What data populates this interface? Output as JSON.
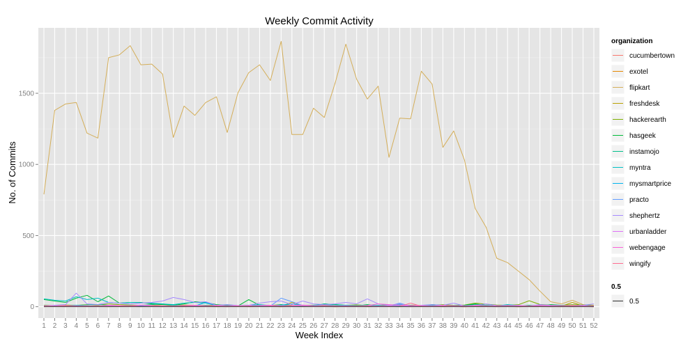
{
  "chart_data": {
    "type": "line",
    "title": "Weekly Commit Activity",
    "xlabel": "Week Index",
    "ylabel": "No. of Commits",
    "xlim": [
      1,
      52
    ],
    "ylim": [
      -80,
      1960
    ],
    "yticks": [
      0,
      500,
      1000,
      1500
    ],
    "xticks": [
      "1",
      "2",
      "3",
      "4",
      "5",
      "6",
      "7",
      "8",
      "9",
      "10",
      "11",
      "12",
      "13",
      "14",
      "15",
      "16",
      "17",
      "18",
      "19",
      "20",
      "21",
      "22",
      "23",
      "24",
      "25",
      "26",
      "27",
      "28",
      "29",
      "30",
      "31",
      "32",
      "33",
      "34",
      "35",
      "36",
      "37",
      "38",
      "39",
      "40",
      "41",
      "42",
      "43",
      "44",
      "45",
      "46",
      "47",
      "48",
      "49",
      "50",
      "51",
      "52"
    ],
    "grid": true,
    "legend_position": "right",
    "legend_title": "organization",
    "legend2": {
      "title": "0.5",
      "label": "0.5",
      "color": "#444444",
      "value": 0.5
    },
    "x": [
      1,
      2,
      3,
      4,
      5,
      6,
      7,
      8,
      9,
      10,
      11,
      12,
      13,
      14,
      15,
      16,
      17,
      18,
      19,
      20,
      21,
      22,
      23,
      24,
      25,
      26,
      27,
      28,
      29,
      30,
      31,
      32,
      33,
      34,
      35,
      36,
      37,
      38,
      39,
      40,
      41,
      42,
      43,
      44,
      45,
      46,
      47,
      48,
      49,
      50,
      51,
      52
    ],
    "series": [
      {
        "name": "cucumbertown",
        "color": "#F8766D",
        "values": [
          2,
          1,
          0,
          3,
          2,
          1,
          0,
          2,
          1,
          0,
          3,
          2,
          1,
          0,
          2,
          1,
          0,
          1,
          2,
          0,
          1,
          2,
          0,
          1,
          0,
          2,
          1,
          0,
          1,
          2,
          0,
          1,
          2,
          1,
          0,
          1,
          2,
          0,
          1,
          0,
          2,
          1,
          0,
          1,
          0,
          2,
          1,
          0,
          1,
          0,
          1,
          0
        ]
      },
      {
        "name": "exotel",
        "color": "#E58700",
        "values": [
          0,
          2,
          4,
          3,
          1,
          5,
          2,
          3,
          1,
          4,
          2,
          0,
          3,
          1,
          2,
          4,
          1,
          0,
          2,
          3,
          1,
          2,
          0,
          4,
          2,
          1,
          3,
          0,
          2,
          1,
          3,
          2,
          1,
          0,
          2,
          1,
          3,
          2,
          1,
          0,
          2,
          3,
          1,
          2,
          0,
          1,
          2,
          1,
          0,
          2,
          1,
          0
        ]
      },
      {
        "name": "flipkart",
        "color": "#D4AE59",
        "values": [
          790,
          1380,
          1425,
          1435,
          1220,
          1185,
          1750,
          1770,
          1835,
          1700,
          1705,
          1635,
          1190,
          1410,
          1345,
          1435,
          1475,
          1225,
          1505,
          1645,
          1700,
          1590,
          1865,
          1210,
          1210,
          1395,
          1330,
          1570,
          1845,
          1600,
          1460,
          1550,
          1050,
          1325,
          1320,
          1655,
          1565,
          1120,
          1235,
          1030,
          690,
          560,
          340,
          310,
          250,
          190,
          110,
          35,
          20,
          45,
          15,
          10
        ]
      },
      {
        "name": "freshdesk",
        "color": "#B8A000",
        "values": [
          3,
          2,
          4,
          2,
          3,
          5,
          2,
          3,
          4,
          2,
          3,
          2,
          4,
          3,
          2,
          3,
          4,
          2,
          3,
          5,
          2,
          3,
          4,
          30,
          8,
          5,
          3,
          2,
          3,
          4,
          2,
          3,
          2,
          4,
          3,
          2,
          5,
          3,
          2,
          4,
          6,
          3,
          2,
          4,
          3,
          2,
          5,
          4,
          3,
          30,
          5,
          3
        ]
      },
      {
        "name": "hackerearth",
        "color": "#7CAE00",
        "values": [
          10,
          8,
          12,
          9,
          14,
          11,
          20,
          15,
          12,
          10,
          9,
          14,
          8,
          12,
          10,
          9,
          13,
          11,
          8,
          10,
          12,
          9,
          14,
          10,
          8,
          11,
          12,
          9,
          10,
          13,
          8,
          9,
          12,
          10,
          11,
          8,
          9,
          14,
          10,
          12,
          25,
          18,
          12,
          10,
          14,
          42,
          16,
          12,
          10,
          14,
          12,
          8
        ]
      },
      {
        "name": "hasgeek",
        "color": "#00BA38",
        "values": [
          50,
          40,
          30,
          60,
          80,
          35,
          75,
          25,
          30,
          30,
          20,
          15,
          10,
          20,
          35,
          30,
          15,
          10,
          5,
          50,
          10,
          5,
          15,
          5,
          10,
          5,
          20,
          15,
          10,
          5,
          15,
          5,
          10,
          5,
          10,
          5,
          15,
          10,
          5,
          10,
          20,
          10,
          5,
          10,
          5,
          10,
          5,
          15,
          10,
          5,
          10,
          5
        ]
      },
      {
        "name": "instamojo",
        "color": "#00C08B",
        "values": [
          8,
          5,
          6,
          10,
          12,
          15,
          10,
          8,
          7,
          10,
          15,
          20,
          10,
          8,
          7,
          10,
          6,
          8,
          5,
          10,
          12,
          8,
          10,
          5,
          8,
          6,
          20,
          15,
          10,
          8,
          12,
          6,
          8,
          10,
          5,
          6,
          8,
          10,
          6,
          8,
          15,
          10,
          8,
          5,
          6,
          8,
          10,
          5,
          6,
          8,
          10,
          5
        ]
      },
      {
        "name": "myntra",
        "color": "#00BFC4",
        "values": [
          55,
          45,
          40,
          70,
          50,
          60,
          30,
          25,
          30,
          28,
          25,
          20,
          15,
          25,
          30,
          25,
          10,
          5,
          8,
          10,
          15,
          8,
          10,
          5,
          8,
          10,
          15,
          8,
          10,
          5,
          8,
          10,
          5,
          15,
          8,
          5,
          10,
          8,
          6,
          5,
          8,
          10,
          5,
          15,
          8,
          6,
          10,
          8,
          5,
          6,
          8,
          5
        ]
      },
      {
        "name": "mysmartprice",
        "color": "#00B4EF",
        "values": [
          5,
          4,
          6,
          8,
          5,
          6,
          4,
          5,
          8,
          6,
          5,
          4,
          6,
          8,
          5,
          30,
          6,
          5,
          4,
          8,
          6,
          5,
          12,
          20,
          8,
          5,
          6,
          4,
          8,
          6,
          5,
          4,
          6,
          8,
          5,
          6,
          4,
          5,
          8,
          6,
          5,
          4,
          6,
          8,
          5,
          6,
          4,
          5,
          8,
          6,
          5,
          4
        ]
      },
      {
        "name": "practo",
        "color": "#619CFF",
        "values": [
          3,
          4,
          5,
          3,
          4,
          6,
          3,
          5,
          4,
          3,
          5,
          4,
          3,
          6,
          4,
          5,
          3,
          4,
          5,
          3,
          6,
          4,
          60,
          35,
          8,
          5,
          4,
          6,
          3,
          5,
          4,
          3,
          5,
          25,
          4,
          3,
          5,
          4,
          3,
          6,
          4,
          5,
          3,
          4,
          5,
          3,
          6,
          4,
          5,
          3,
          4,
          5
        ]
      },
      {
        "name": "shephertz",
        "color": "#A58AFF",
        "values": [
          5,
          10,
          15,
          95,
          20,
          15,
          30,
          25,
          20,
          25,
          30,
          40,
          65,
          50,
          30,
          35,
          10,
          15,
          8,
          10,
          25,
          35,
          40,
          15,
          40,
          20,
          15,
          20,
          30,
          20,
          55,
          20,
          10,
          20,
          5,
          10,
          15,
          10,
          25,
          5,
          10,
          20,
          8,
          5,
          10,
          5,
          15,
          10,
          8,
          5,
          10,
          20
        ]
      },
      {
        "name": "urbanladder",
        "color": "#DF70F8",
        "values": [
          4,
          3,
          5,
          6,
          4,
          3,
          5,
          4,
          6,
          3,
          5,
          4,
          3,
          6,
          4,
          5,
          3,
          4,
          5,
          8,
          4,
          6,
          3,
          5,
          4,
          3,
          5,
          6,
          4,
          3,
          5,
          4,
          6,
          3,
          5,
          4,
          3,
          6,
          4,
          5,
          3,
          4,
          5,
          3,
          6,
          4,
          5,
          3,
          4,
          5,
          3,
          4
        ]
      },
      {
        "name": "webengage",
        "color": "#FB61D7",
        "values": [
          6,
          4,
          8,
          5,
          6,
          4,
          10,
          8,
          6,
          12,
          8,
          6,
          5,
          8,
          10,
          6,
          8,
          5,
          6,
          4,
          8,
          10,
          6,
          8,
          12,
          6,
          8,
          5,
          6,
          4,
          8,
          20,
          15,
          10,
          8,
          6,
          5,
          8,
          6,
          4,
          8,
          6,
          5,
          8,
          6,
          4,
          8,
          6,
          5,
          8,
          6,
          4
        ]
      },
      {
        "name": "wingify",
        "color": "#FF6C91",
        "values": [
          2,
          3,
          4,
          2,
          3,
          5,
          2,
          3,
          4,
          2,
          3,
          2,
          4,
          3,
          2,
          3,
          4,
          2,
          3,
          5,
          2,
          3,
          4,
          2,
          3,
          2,
          4,
          3,
          2,
          3,
          4,
          2,
          3,
          2,
          25,
          3,
          2,
          4,
          3,
          2,
          3,
          4,
          2,
          3,
          2,
          4,
          3,
          2,
          3,
          4,
          2,
          3
        ]
      }
    ]
  }
}
